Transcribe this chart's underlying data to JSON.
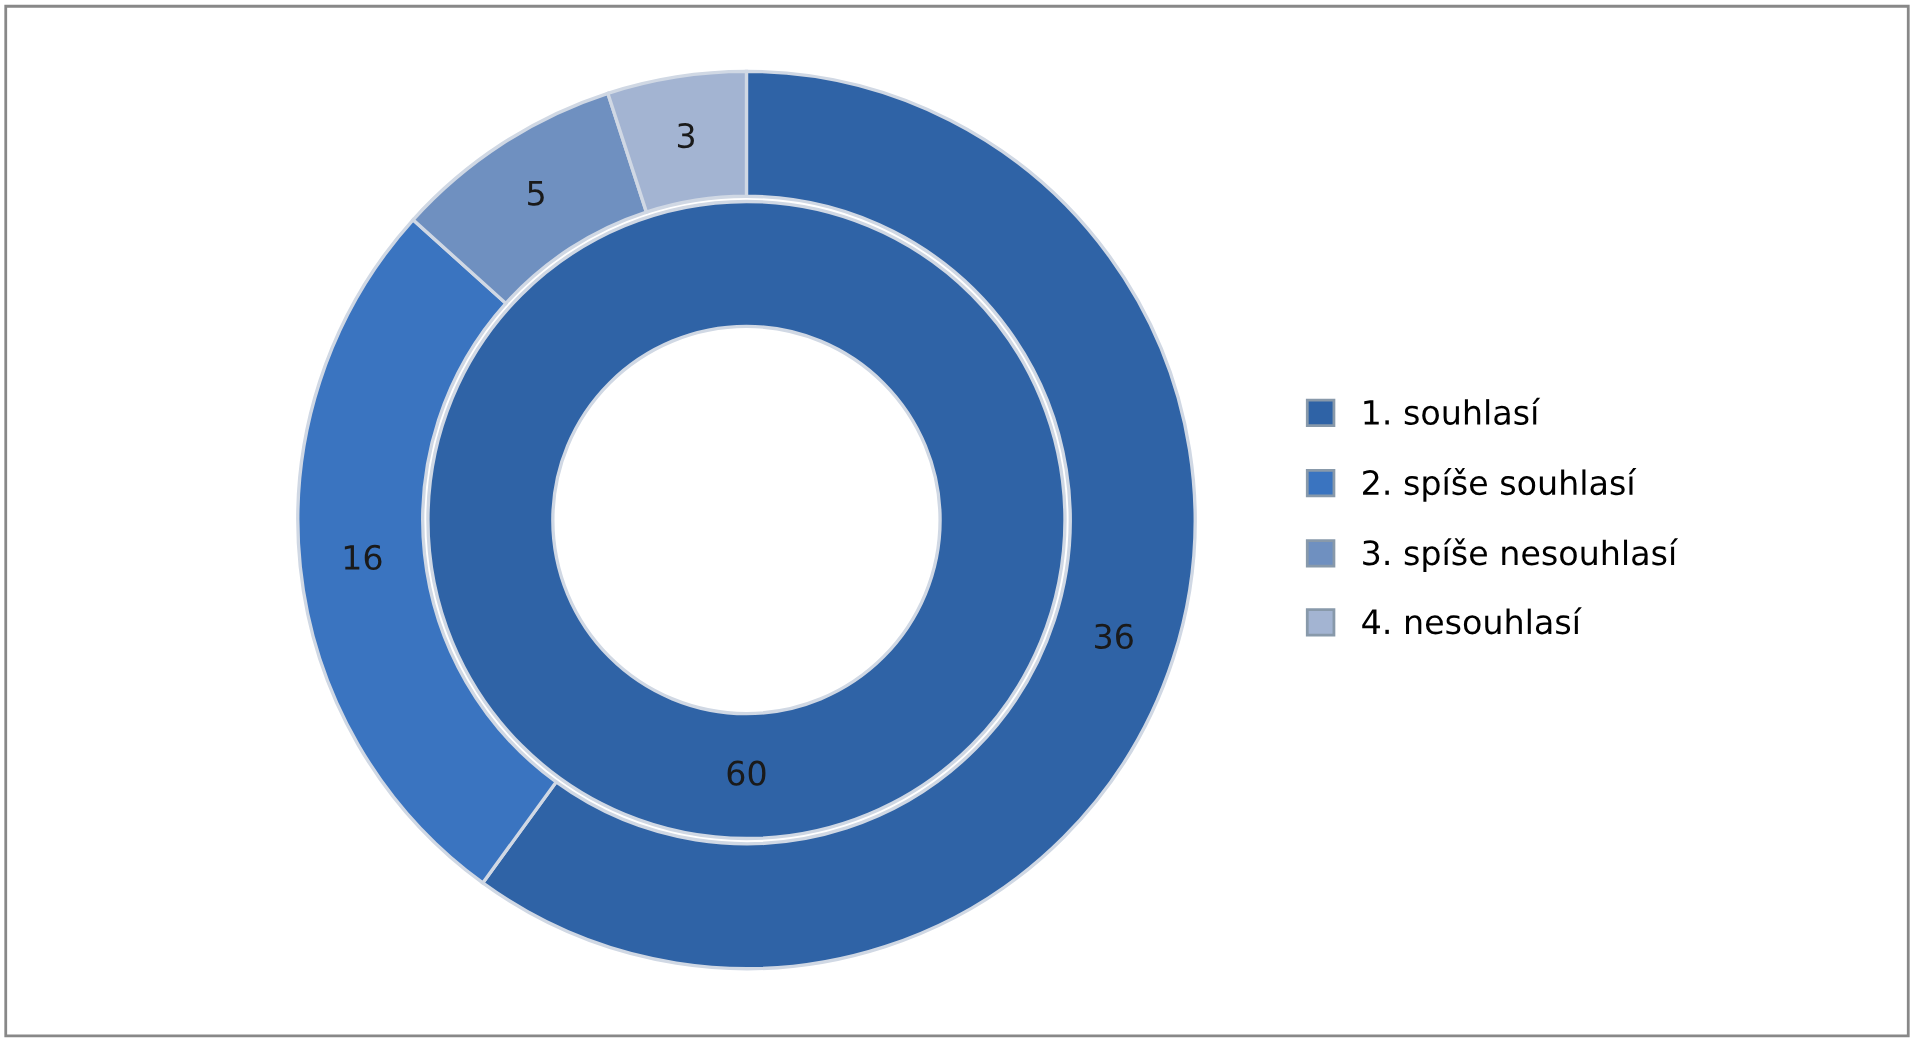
{
  "chart_data": {
    "type": "donut",
    "categories": [
      "1. souhlasí",
      "2. spíše souhlasí",
      "3. spíše nesouhlasí",
      "4. nesouhlasí"
    ],
    "colors": [
      "#2f63a6",
      "#3a74c0",
      "#6f90c0",
      "#a3b4d2"
    ],
    "series": [
      {
        "values": [
          60,
          null,
          null,
          null
        ]
      },
      {
        "values": [
          36,
          16,
          5,
          3
        ]
      }
    ],
    "data_labels": true,
    "legend": "right"
  }
}
